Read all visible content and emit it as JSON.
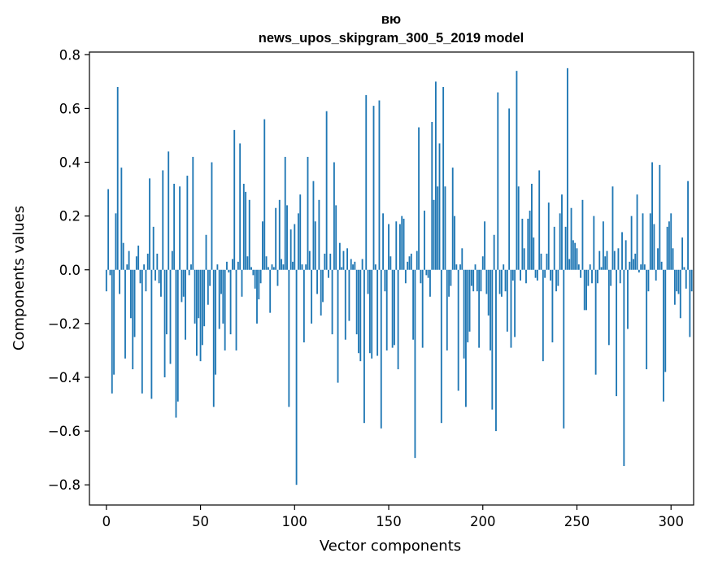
{
  "chart_data": {
    "type": "bar",
    "title_line1": "вю",
    "title_line2": "news_upos_skipgram_300_5_2019 model",
    "xlabel": "Vector components",
    "ylabel": "Components values",
    "xlim": [
      -9,
      312
    ],
    "ylim": [
      -0.875,
      0.81
    ],
    "xticks": [
      0,
      50,
      100,
      150,
      200,
      250,
      300
    ],
    "yticks": [
      -0.8,
      -0.6,
      -0.4,
      -0.2,
      0.0,
      0.2,
      0.4,
      0.6,
      0.8
    ],
    "ytick_labels": [
      "−0.8",
      "−0.6",
      "−0.4",
      "−0.2",
      "0.0",
      "0.2",
      "0.4",
      "0.6",
      "0.8"
    ],
    "grid": false,
    "bar_color": "#1f77b4",
    "values": [
      -0.08,
      0.3,
      -0.02,
      -0.46,
      -0.39,
      0.21,
      0.68,
      -0.09,
      0.38,
      0.1,
      -0.33,
      0.02,
      0.07,
      -0.18,
      -0.37,
      -0.25,
      0.05,
      0.09,
      -0.05,
      -0.46,
      0.02,
      -0.08,
      0.06,
      0.34,
      -0.48,
      0.16,
      -0.04,
      0.06,
      -0.05,
      -0.1,
      0.37,
      -0.4,
      -0.24,
      0.44,
      -0.35,
      0.07,
      0.32,
      -0.55,
      -0.49,
      0.31,
      -0.12,
      -0.1,
      -0.26,
      0.35,
      -0.02,
      0.02,
      0.42,
      -0.2,
      -0.32,
      -0.18,
      -0.34,
      -0.28,
      -0.21,
      0.13,
      -0.13,
      -0.06,
      0.4,
      -0.51,
      -0.39,
      0.02,
      -0.22,
      -0.09,
      -0.2,
      -0.3,
      0.03,
      -0.01,
      -0.24,
      0.04,
      0.52,
      -0.3,
      0.03,
      0.47,
      -0.1,
      0.32,
      0.29,
      0.05,
      0.26,
      0.01,
      -0.02,
      -0.07,
      -0.2,
      -0.11,
      -0.05,
      0.18,
      0.56,
      0.05,
      0.01,
      -0.16,
      0.02,
      0.01,
      0.23,
      -0.06,
      0.26,
      0.04,
      0.02,
      0.42,
      0.24,
      -0.51,
      0.15,
      0.03,
      0.17,
      -0.8,
      0.21,
      0.28,
      0.02,
      -0.27,
      0.02,
      0.42,
      0.07,
      -0.2,
      0.33,
      0.18,
      -0.09,
      0.26,
      -0.17,
      -0.12,
      0.06,
      0.59,
      -0.03,
      0.06,
      -0.24,
      0.4,
      0.24,
      -0.42,
      0.1,
      0.01,
      0.07,
      -0.26,
      0.08,
      -0.19,
      0.04,
      0.02,
      0.03,
      -0.24,
      -0.31,
      -0.34,
      0.04,
      -0.57,
      0.65,
      -0.09,
      -0.31,
      -0.33,
      0.61,
      0.02,
      -0.32,
      0.63,
      -0.59,
      0.21,
      -0.08,
      -0.3,
      0.17,
      0.05,
      -0.29,
      -0.28,
      0.18,
      -0.37,
      0.17,
      0.2,
      0.19,
      -0.05,
      0.03,
      0.05,
      0.06,
      -0.26,
      -0.7,
      0.07,
      0.53,
      -0.05,
      -0.29,
      0.22,
      -0.02,
      -0.03,
      -0.1,
      0.55,
      0.26,
      0.7,
      0.31,
      0.47,
      -0.57,
      0.68,
      0.31,
      -0.3,
      -0.1,
      -0.06,
      0.38,
      0.2,
      0.02,
      -0.45,
      0.02,
      0.08,
      -0.33,
      -0.51,
      -0.27,
      -0.23,
      -0.06,
      -0.08,
      0.02,
      -0.08,
      -0.29,
      -0.08,
      0.05,
      0.18,
      -0.09,
      -0.17,
      -0.3,
      -0.52,
      0.13,
      -0.6,
      0.66,
      -0.09,
      -0.1,
      0.02,
      -0.08,
      -0.23,
      0.6,
      -0.29,
      -0.04,
      -0.25,
      0.74,
      0.31,
      -0.04,
      0.19,
      0.08,
      -0.05,
      0.19,
      0.22,
      0.32,
      0.12,
      -0.03,
      -0.04,
      0.37,
      0.06,
      -0.34,
      -0.03,
      0.06,
      0.25,
      -0.04,
      -0.27,
      0.16,
      -0.08,
      -0.06,
      0.21,
      0.28,
      -0.59,
      0.16,
      0.75,
      0.04,
      0.23,
      0.11,
      0.1,
      0.08,
      0.02,
      -0.03,
      0.26,
      -0.15,
      -0.15,
      -0.06,
      0.02,
      -0.05,
      0.2,
      -0.39,
      -0.05,
      0.07,
      0.01,
      0.18,
      0.05,
      0.07,
      -0.28,
      -0.06,
      0.31,
      0.07,
      -0.47,
      0.08,
      -0.05,
      0.14,
      -0.73,
      0.11,
      -0.22,
      0.03,
      0.2,
      0.04,
      0.06,
      0.28,
      -0.01,
      0.02,
      0.21,
      0.02,
      -0.37,
      -0.08,
      0.21,
      0.4,
      0.17,
      -0.04,
      0.08,
      0.39,
      0.03,
      -0.49,
      -0.38,
      0.16,
      0.18,
      0.21,
      0.08,
      -0.13,
      -0.08,
      -0.09,
      -0.18,
      0.12,
      0.01,
      -0.07,
      0.33,
      -0.25,
      -0.08
    ]
  }
}
